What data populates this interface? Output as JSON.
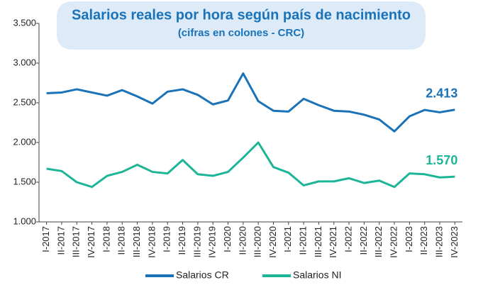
{
  "chart_data": {
    "type": "line",
    "title": "Salarios reales por hora según país de nacimiento",
    "subtitle": "(cifras en colones - CRC)",
    "categories": [
      "I-2017",
      "II-2017",
      "III-2017",
      "IV-2017",
      "I-2018",
      "II-2018",
      "III-2018",
      "IV-2018",
      "I-2019",
      "II-2019",
      "III-2019",
      "IV-2019",
      "I-2020",
      "II-2020",
      "III-2020",
      "IV-2020",
      "I-2021",
      "II-2021",
      "III-2021",
      "IV-2021",
      "I-2022",
      "II-2022",
      "III-2022",
      "IV-2022",
      "I-2023",
      "II-2023",
      "III-2023",
      "IV-2023"
    ],
    "series": [
      {
        "name": "Salarios CR",
        "color": "#1a72b8",
        "values": [
          2620,
          2630,
          2670,
          2630,
          2590,
          2660,
          2580,
          2490,
          2640,
          2670,
          2600,
          2480,
          2530,
          2870,
          2520,
          2400,
          2390,
          2550,
          2470,
          2400,
          2390,
          2350,
          2290,
          2140,
          2330,
          2410,
          2380,
          2413
        ],
        "value_labels": [
          null,
          null,
          null,
          null,
          null,
          null,
          null,
          null,
          null,
          null,
          null,
          null,
          null,
          null,
          null,
          null,
          null,
          null,
          null,
          null,
          null,
          null,
          null,
          null,
          null,
          null,
          null,
          "2.413"
        ]
      },
      {
        "name": "Salarios NI",
        "color": "#1db597",
        "values": [
          1670,
          1640,
          1500,
          1440,
          1580,
          1630,
          1720,
          1630,
          1610,
          1780,
          1600,
          1580,
          1630,
          1810,
          2000,
          1690,
          1620,
          1460,
          1510,
          1510,
          1550,
          1490,
          1520,
          1440,
          1610,
          1600,
          1560,
          1570
        ],
        "value_labels": [
          null,
          null,
          null,
          null,
          null,
          null,
          null,
          null,
          null,
          null,
          null,
          null,
          null,
          null,
          null,
          null,
          null,
          null,
          null,
          null,
          null,
          null,
          null,
          null,
          null,
          null,
          null,
          "1.570"
        ]
      }
    ],
    "ylim": [
      1000,
      3500
    ],
    "yticks": [
      {
        "value": 1000,
        "label": "1.000"
      },
      {
        "value": 1500,
        "label": "1.500"
      },
      {
        "value": 2000,
        "label": "2.000"
      },
      {
        "value": 2500,
        "label": "2.500"
      },
      {
        "value": 3000,
        "label": "3.000"
      },
      {
        "value": 3500,
        "label": "3.500"
      }
    ],
    "grid": false,
    "legend": "bottom"
  }
}
